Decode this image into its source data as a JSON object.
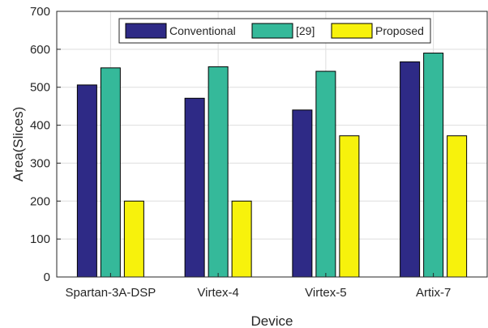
{
  "chart_data": {
    "type": "bar",
    "title": "",
    "xlabel": "Device",
    "ylabel": "Area(Slices)",
    "categories": [
      "Spartan-3A-DSP",
      "Virtex-4",
      "Virtex-5",
      "Artix-7"
    ],
    "series": [
      {
        "name": "Conventional",
        "color": "#2e2a86",
        "values": [
          506,
          471,
          440,
          567
        ]
      },
      {
        "name": "[29]",
        "color": "#35b99a",
        "values": [
          551,
          554,
          542,
          590
        ]
      },
      {
        "name": "Proposed",
        "color": "#f7f20c",
        "values": [
          200,
          200,
          372,
          372
        ]
      }
    ],
    "ylim": [
      0,
      700
    ],
    "yticks": [
      0,
      100,
      200,
      300,
      400,
      500,
      600,
      700
    ],
    "grid": true,
    "legend_position": "top-center"
  }
}
